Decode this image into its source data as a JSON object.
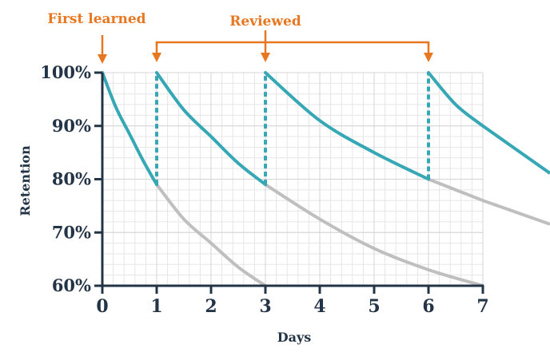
{
  "chart_data": {
    "type": "line",
    "title": "",
    "xlabel": "Days",
    "ylabel": "Retention",
    "xlim": [
      0,
      7
    ],
    "ylim": [
      60,
      100
    ],
    "x_ticks": [
      0,
      1,
      2,
      3,
      4,
      5,
      6,
      7
    ],
    "x_tick_labels": [
      "0",
      "1",
      "2",
      "3",
      "4",
      "5",
      "6",
      "7"
    ],
    "y_ticks": [
      60,
      70,
      80,
      90,
      100
    ],
    "y_tick_labels": [
      "60%",
      "70%",
      "80%",
      "90%",
      "100%"
    ],
    "grid": true,
    "series": [
      {
        "style": "teal-solid",
        "x": [
          0,
          0.25,
          0.5,
          0.75,
          1
        ],
        "y": [
          100,
          93.5,
          88.5,
          83.5,
          79
        ]
      },
      {
        "style": "teal-solid",
        "x": [
          1,
          1.5,
          2,
          2.5,
          3
        ],
        "y": [
          100,
          93,
          88,
          83,
          79
        ]
      },
      {
        "style": "teal-solid",
        "x": [
          3,
          4,
          5,
          6
        ],
        "y": [
          100,
          91,
          85,
          80
        ]
      },
      {
        "style": "teal-solid",
        "x": [
          6,
          6.5,
          7
        ],
        "y": [
          100,
          94,
          90
        ]
      },
      {
        "style": "gray-solid",
        "x": [
          1,
          1.5,
          2,
          2.5,
          3
        ],
        "y": [
          79,
          72.5,
          68,
          63.5,
          60
        ]
      },
      {
        "style": "gray-solid",
        "x": [
          3,
          4,
          5,
          6,
          7
        ],
        "y": [
          79,
          72.5,
          67,
          63,
          60
        ]
      },
      {
        "style": "gray-solid",
        "x": [
          6,
          6.5,
          7
        ],
        "y": [
          80,
          78,
          76
        ]
      },
      {
        "style": "teal-dashed",
        "x": [
          1,
          1
        ],
        "y": [
          79,
          100
        ]
      },
      {
        "style": "teal-dashed",
        "x": [
          3,
          3
        ],
        "y": [
          79,
          100
        ]
      },
      {
        "style": "teal-dashed",
        "x": [
          6,
          6
        ],
        "y": [
          80,
          100
        ]
      }
    ],
    "annotations": [
      {
        "text": "First learned",
        "x": [
          0
        ]
      },
      {
        "text": "Reviewed",
        "x": [
          1,
          3,
          6
        ]
      }
    ],
    "colors": {
      "teal": "#36a7b5",
      "gray": "#bfbfbf",
      "orange": "#e87722",
      "axis": "#243447",
      "grid": "#e6e6e6"
    }
  }
}
